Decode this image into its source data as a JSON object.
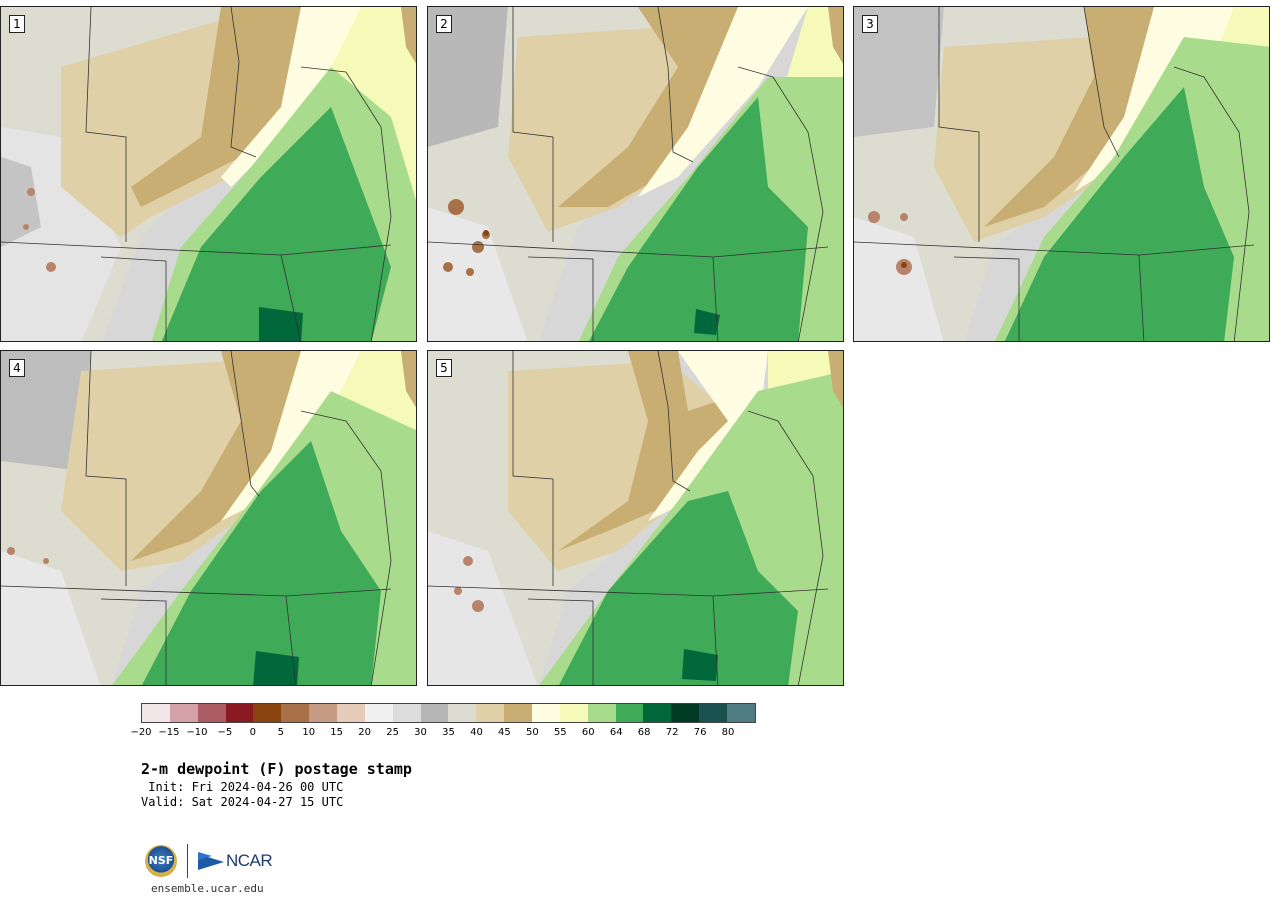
{
  "panels": [
    {
      "label": "1"
    },
    {
      "label": "2"
    },
    {
      "label": "3"
    },
    {
      "label": "4"
    },
    {
      "label": "5"
    }
  ],
  "colorbar": {
    "tick_labels": [
      "−20",
      "−15",
      "−10",
      "−5",
      "0",
      "5",
      "10",
      "15",
      "20",
      "25",
      "30",
      "35",
      "40",
      "45",
      "50",
      "55",
      "60",
      "64",
      "68",
      "72",
      "76",
      "80"
    ],
    "colors": [
      "#f3e6e8",
      "#d4a2a8",
      "#ad5c64",
      "#8a1a22",
      "#8a4410",
      "#a87048",
      "#c79c84",
      "#e6cbb8",
      "#f0f0f0",
      "#dcdcdc",
      "#b5b5b5",
      "#dcdcd0",
      "#e0d0a8",
      "#c8ae72",
      "#fefde2",
      "#f6fab8",
      "#a8dc8c",
      "#3faa58",
      "#00683a",
      "#003a24",
      "#1a5050",
      "#4e7c82"
    ]
  },
  "title": "2-m dewpoint (F) postage stamp",
  "init": " Init: Fri 2024-04-26 00 UTC",
  "valid": "Valid: Sat 2024-04-27 15 UTC",
  "logos": {
    "nsf": "NSF",
    "ncar": "NCAR"
  },
  "site": "ensemble.ucar.edu"
}
